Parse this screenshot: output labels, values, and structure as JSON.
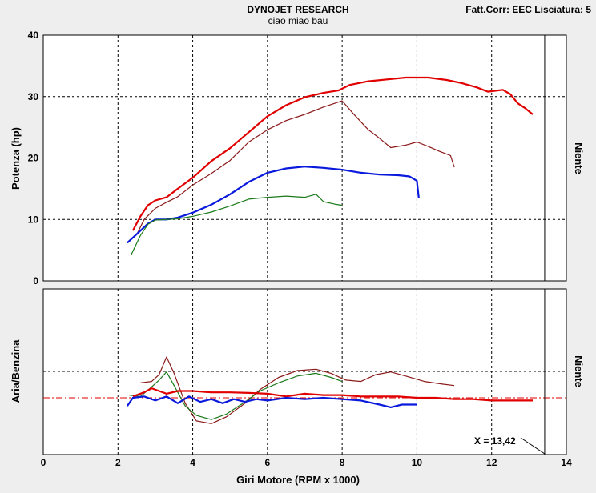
{
  "header": {
    "title": "DYNOJET RESEARCH",
    "subtitle": "ciao miao bau",
    "right_info": "Fatt.Corr: EEC  Lisciatura: 5"
  },
  "chart_data": [
    {
      "type": "line",
      "panel": "top",
      "ylabel": "Potenza (hp)",
      "right_label": "Niente",
      "xlim": [
        0,
        14
      ],
      "ylim": [
        0,
        40
      ],
      "yticks": [
        0,
        10,
        20,
        30,
        40
      ],
      "series": [
        {
          "color": "#e00000",
          "width": 2.2,
          "points": [
            [
              2.4,
              8.2
            ],
            [
              2.6,
              10.5
            ],
            [
              2.8,
              12.3
            ],
            [
              3.0,
              13.1
            ],
            [
              3.3,
              13.6
            ],
            [
              3.6,
              15
            ],
            [
              4.0,
              16.8
            ],
            [
              4.5,
              19.5
            ],
            [
              5.0,
              21.6
            ],
            [
              5.5,
              24.2
            ],
            [
              6.0,
              26.8
            ],
            [
              6.5,
              28.6
            ],
            [
              7.0,
              29.9
            ],
            [
              7.5,
              30.6
            ],
            [
              7.9,
              31
            ],
            [
              8.2,
              31.9
            ],
            [
              8.7,
              32.5
            ],
            [
              9.2,
              32.8
            ],
            [
              9.7,
              33.1
            ],
            [
              10.3,
              33.1
            ],
            [
              10.8,
              32.7
            ],
            [
              11.2,
              32.2
            ],
            [
              11.6,
              31.5
            ],
            [
              11.9,
              30.8
            ],
            [
              12.3,
              31.1
            ],
            [
              12.5,
              30.4
            ],
            [
              12.7,
              28.9
            ],
            [
              12.9,
              28.1
            ],
            [
              13.1,
              27.1
            ]
          ]
        },
        {
          "color": "#8b1a1a",
          "width": 1.2,
          "points": [
            [
              2.5,
              7.5
            ],
            [
              2.7,
              10
            ],
            [
              3.0,
              11.8
            ],
            [
              3.3,
              12.8
            ],
            [
              3.6,
              13.7
            ],
            [
              4.0,
              15.6
            ],
            [
              4.5,
              17.5
            ],
            [
              5.0,
              19.6
            ],
            [
              5.5,
              22.6
            ],
            [
              6.0,
              24.6
            ],
            [
              6.5,
              26.1
            ],
            [
              7.0,
              27.1
            ],
            [
              7.5,
              28.3
            ],
            [
              8.0,
              29.3
            ],
            [
              8.3,
              27.2
            ],
            [
              8.7,
              24.6
            ],
            [
              9.0,
              23.2
            ],
            [
              9.3,
              21.7
            ],
            [
              9.7,
              22.1
            ],
            [
              10.0,
              22.6
            ],
            [
              10.3,
              21.9
            ],
            [
              10.6,
              21.1
            ],
            [
              10.9,
              20.4
            ],
            [
              11.0,
              18.5
            ]
          ]
        },
        {
          "color": "#0a1adc",
          "width": 2.2,
          "points": [
            [
              2.25,
              6.2
            ],
            [
              2.5,
              7.6
            ],
            [
              2.8,
              9.3
            ],
            [
              3.0,
              10
            ],
            [
              3.3,
              10
            ],
            [
              3.6,
              10.3
            ],
            [
              4.0,
              11.1
            ],
            [
              4.5,
              12.4
            ],
            [
              5.0,
              14.1
            ],
            [
              5.5,
              16.1
            ],
            [
              6.0,
              17.6
            ],
            [
              6.5,
              18.3
            ],
            [
              7.0,
              18.6
            ],
            [
              7.5,
              18.4
            ],
            [
              8.0,
              18.1
            ],
            [
              8.5,
              17.6
            ],
            [
              9.0,
              17.3
            ],
            [
              9.5,
              17.2
            ],
            [
              9.8,
              17
            ],
            [
              10.0,
              16.3
            ],
            [
              10.05,
              13.5
            ]
          ]
        },
        {
          "color": "#1a7a1a",
          "width": 1.2,
          "points": [
            [
              2.35,
              4.2
            ],
            [
              2.6,
              7.4
            ],
            [
              2.8,
              9.2
            ],
            [
              3.0,
              9.9
            ],
            [
              3.3,
              10
            ],
            [
              3.6,
              10.1
            ],
            [
              4.0,
              10.5
            ],
            [
              4.5,
              11.2
            ],
            [
              5.0,
              12.2
            ],
            [
              5.5,
              13.3
            ],
            [
              6.0,
              13.6
            ],
            [
              6.5,
              13.8
            ],
            [
              7.0,
              13.6
            ],
            [
              7.3,
              14.1
            ],
            [
              7.5,
              12.9
            ],
            [
              7.8,
              12.5
            ],
            [
              8.0,
              12.3
            ]
          ]
        }
      ]
    },
    {
      "type": "line",
      "panel": "bottom",
      "ylabel": "Aria/Benzina",
      "right_label": "Niente",
      "xlabel": "Giri Motore (RPM x 1000)",
      "xlim": [
        0,
        14
      ],
      "xticks": [
        0,
        2,
        4,
        6,
        8,
        10,
        12,
        14
      ],
      "cursor": {
        "x": 13.42,
        "label": "X = 13,42"
      },
      "series": [
        {
          "color": "#8b1a1a",
          "width": 1.2,
          "points": [
            [
              2.6,
              0.55
            ],
            [
              2.9,
              0.6
            ],
            [
              3.1,
              0.85
            ],
            [
              3.3,
              1.5
            ],
            [
              3.5,
              0.9
            ],
            [
              3.8,
              -0.2
            ],
            [
              4.1,
              -0.85
            ],
            [
              4.5,
              -0.95
            ],
            [
              4.9,
              -0.7
            ],
            [
              5.4,
              -0.2
            ],
            [
              5.8,
              0.3
            ],
            [
              6.3,
              0.75
            ],
            [
              6.8,
              1.0
            ],
            [
              7.3,
              1.05
            ],
            [
              7.7,
              0.9
            ],
            [
              8.1,
              0.65
            ],
            [
              8.5,
              0.6
            ],
            [
              8.9,
              0.85
            ],
            [
              9.3,
              0.95
            ],
            [
              9.7,
              0.8
            ],
            [
              10.2,
              0.6
            ],
            [
              10.7,
              0.5
            ],
            [
              11.0,
              0.45
            ]
          ]
        },
        {
          "color": "#1a7a1a",
          "width": 1.2,
          "points": [
            [
              2.3,
              0.1
            ],
            [
              2.6,
              0.05
            ],
            [
              2.9,
              0.4
            ],
            [
              3.1,
              0.65
            ],
            [
              3.3,
              0.95
            ],
            [
              3.5,
              0.45
            ],
            [
              3.8,
              -0.3
            ],
            [
              4.1,
              -0.65
            ],
            [
              4.5,
              -0.8
            ],
            [
              4.9,
              -0.6
            ],
            [
              5.4,
              -0.15
            ],
            [
              5.8,
              0.25
            ],
            [
              6.3,
              0.55
            ],
            [
              6.8,
              0.8
            ],
            [
              7.3,
              0.9
            ],
            [
              7.7,
              0.75
            ],
            [
              8.0,
              0.6
            ]
          ]
        },
        {
          "color": "#e00000",
          "width": 2.2,
          "points": [
            [
              2.4,
              0.05
            ],
            [
              2.7,
              0.2
            ],
            [
              2.9,
              0.35
            ],
            [
              3.1,
              0.25
            ],
            [
              3.3,
              0.15
            ],
            [
              3.6,
              0.25
            ],
            [
              4.0,
              0.25
            ],
            [
              4.5,
              0.2
            ],
            [
              5.0,
              0.2
            ],
            [
              5.5,
              0.18
            ],
            [
              6.0,
              0.15
            ],
            [
              6.5,
              0.05
            ],
            [
              7.0,
              0.15
            ],
            [
              7.5,
              0.1
            ],
            [
              8.0,
              0.1
            ],
            [
              8.5,
              0.05
            ],
            [
              9.0,
              0.05
            ],
            [
              9.5,
              0.05
            ],
            [
              10.0,
              0.0
            ],
            [
              10.5,
              0.0
            ],
            [
              11.0,
              -0.05
            ],
            [
              11.5,
              -0.05
            ],
            [
              12.0,
              -0.1
            ],
            [
              12.5,
              -0.1
            ],
            [
              13.0,
              -0.1
            ],
            [
              13.1,
              -0.1
            ]
          ]
        },
        {
          "color": "#0a1adc",
          "width": 2.2,
          "points": [
            [
              2.25,
              -0.3
            ],
            [
              2.4,
              0.0
            ],
            [
              2.7,
              0.05
            ],
            [
              3.0,
              -0.1
            ],
            [
              3.3,
              0.05
            ],
            [
              3.6,
              -0.2
            ],
            [
              3.9,
              0.05
            ],
            [
              4.2,
              -0.15
            ],
            [
              4.5,
              -0.05
            ],
            [
              4.8,
              -0.2
            ],
            [
              5.1,
              -0.05
            ],
            [
              5.4,
              -0.15
            ],
            [
              5.7,
              -0.05
            ],
            [
              6.0,
              -0.1
            ],
            [
              6.5,
              0.0
            ],
            [
              7.0,
              -0.05
            ],
            [
              7.5,
              0.0
            ],
            [
              8.0,
              -0.05
            ],
            [
              8.5,
              -0.1
            ],
            [
              9.0,
              -0.25
            ],
            [
              9.3,
              -0.35
            ],
            [
              9.6,
              -0.25
            ],
            [
              10.0,
              -0.25
            ]
          ]
        }
      ]
    }
  ]
}
